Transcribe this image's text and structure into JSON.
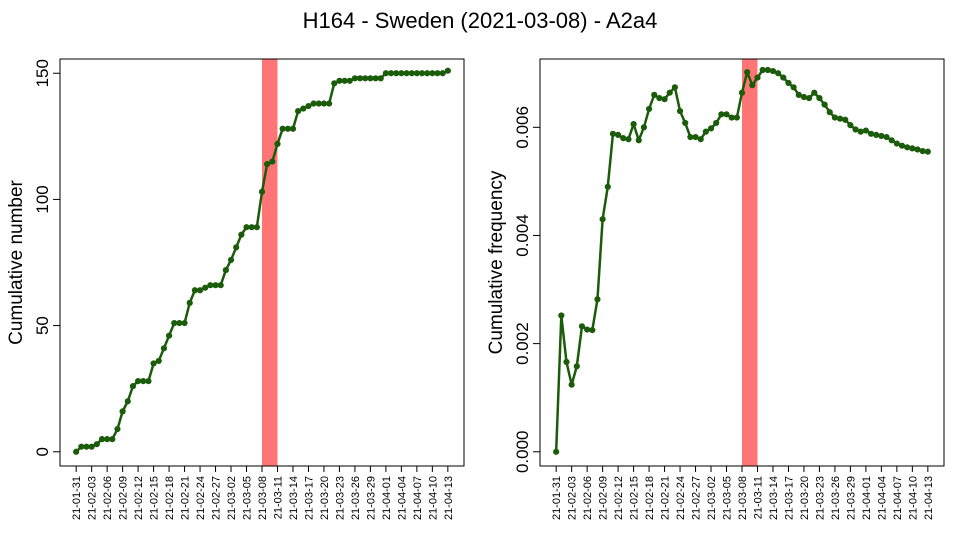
{
  "title": "H164 - Sweden (2021-03-08) - A2a4",
  "colors": {
    "line": "#1a5c0a",
    "highlight": "#ff7575",
    "axis": "#000000"
  },
  "chart_data": [
    {
      "type": "line",
      "ylabel": "Cumulative number",
      "xlabel": "",
      "ylim": [
        0,
        150
      ],
      "yticks": [
        0,
        50,
        100,
        150
      ],
      "ytick_labels": [
        "0",
        "50",
        "100",
        "150"
      ],
      "x_start": "2021-01-31",
      "x_tick_labels": [
        "21-01-31",
        "21-02-03",
        "21-02-06",
        "21-02-09",
        "21-02-12",
        "21-02-15",
        "21-02-18",
        "21-02-21",
        "21-02-24",
        "21-02-27",
        "21-03-02",
        "21-03-05",
        "21-03-08",
        "21-03-11",
        "21-03-14",
        "21-03-17",
        "21-03-20",
        "21-03-23",
        "21-03-26",
        "21-03-29",
        "21-04-01",
        "21-04-04",
        "21-04-07",
        "21-04-10",
        "21-04-13"
      ],
      "highlight": {
        "from": "2021-03-08",
        "to": "2021-03-11"
      },
      "series": [
        {
          "values": [
            0,
            2,
            2,
            2,
            3,
            5,
            5,
            5,
            9,
            16,
            20,
            26,
            28,
            28,
            28,
            35,
            36,
            41,
            46,
            51,
            51,
            51,
            59,
            64,
            64,
            65,
            66,
            66,
            66,
            72,
            76,
            81,
            86,
            89,
            89,
            89,
            103,
            114,
            115,
            122,
            128,
            128,
            128,
            135,
            136,
            137,
            138,
            138,
            138,
            138,
            146,
            147,
            147,
            147,
            148,
            148,
            148,
            148,
            148,
            148,
            150,
            150,
            150,
            150,
            150,
            150,
            150,
            150,
            150,
            150,
            150,
            150,
            151
          ]
        }
      ]
    },
    {
      "type": "line",
      "ylabel": "Cumulative frequency",
      "xlabel": "",
      "ylim": [
        0,
        0.007
      ],
      "yticks": [
        0,
        0.002,
        0.004,
        0.006
      ],
      "ytick_labels": [
        "0.000",
        "0.002",
        "0.004",
        "0.006"
      ],
      "x_start": "2021-01-31",
      "x_tick_labels": [
        "21-01-31",
        "21-02-03",
        "21-02-06",
        "21-02-09",
        "21-02-12",
        "21-02-15",
        "21-02-18",
        "21-02-21",
        "21-02-24",
        "21-02-27",
        "21-03-02",
        "21-03-05",
        "21-03-08",
        "21-03-11",
        "21-03-14",
        "21-03-17",
        "21-03-20",
        "21-03-23",
        "21-03-26",
        "21-03-29",
        "21-04-01",
        "21-04-04",
        "21-04-07",
        "21-04-10",
        "21-04-13"
      ],
      "highlight": {
        "from": "2021-03-08",
        "to": "2021-03-11"
      },
      "series": [
        {
          "values": [
            0.0,
            0.00252,
            0.00166,
            0.00124,
            0.00158,
            0.00232,
            0.00226,
            0.00225,
            0.00282,
            0.0043,
            0.0049,
            0.00588,
            0.00586,
            0.0058,
            0.00578,
            0.00606,
            0.00576,
            0.006,
            0.00634,
            0.0066,
            0.00654,
            0.00652,
            0.00664,
            0.00674,
            0.0063,
            0.00608,
            0.00582,
            0.00582,
            0.00578,
            0.00592,
            0.00598,
            0.00608,
            0.00624,
            0.00624,
            0.00618,
            0.00618,
            0.00664,
            0.00702,
            0.00678,
            0.00692,
            0.00706,
            0.00706,
            0.00704,
            0.007,
            0.00692,
            0.00682,
            0.00674,
            0.0066,
            0.00656,
            0.00654,
            0.00664,
            0.00654,
            0.00642,
            0.00628,
            0.00618,
            0.00616,
            0.00614,
            0.00604,
            0.00596,
            0.00592,
            0.00594,
            0.00588,
            0.00586,
            0.00584,
            0.00582,
            0.00576,
            0.0057,
            0.00566,
            0.00563,
            0.00561,
            0.00559,
            0.00556,
            0.00555
          ]
        }
      ]
    }
  ]
}
